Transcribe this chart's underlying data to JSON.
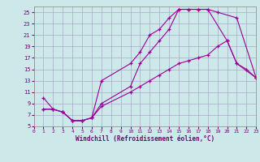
{
  "xlabel": "Windchill (Refroidissement éolien,°C)",
  "bg_color": "#cce8e8",
  "grid_color": "#aaaacc",
  "line_color": "#990099",
  "xlim": [
    0,
    23
  ],
  "ylim": [
    5,
    26
  ],
  "xticks": [
    0,
    1,
    2,
    3,
    4,
    5,
    6,
    7,
    8,
    9,
    10,
    11,
    12,
    13,
    14,
    15,
    16,
    17,
    18,
    19,
    20,
    21,
    22,
    23
  ],
  "yticks": [
    5,
    7,
    9,
    11,
    13,
    15,
    17,
    19,
    21,
    23,
    25
  ],
  "curve1_x": [
    1,
    2,
    3,
    4,
    5,
    6,
    7,
    10,
    11,
    12,
    13,
    14,
    15,
    16,
    17,
    18,
    19,
    21,
    23
  ],
  "curve1_y": [
    10,
    8,
    7.5,
    6,
    6,
    6.5,
    9,
    12,
    16,
    18,
    20,
    22,
    25.5,
    25.5,
    25.5,
    25.5,
    25,
    24,
    13.5
  ],
  "curve2_x": [
    1,
    2,
    3,
    4,
    5,
    6,
    7,
    10,
    11,
    12,
    13,
    14,
    15,
    16,
    17,
    18,
    20,
    21,
    23
  ],
  "curve2_y": [
    8,
    8,
    7.5,
    6,
    6,
    6.5,
    13,
    16,
    18,
    21,
    22,
    24,
    25.5,
    25.5,
    25.5,
    25.5,
    20,
    16,
    13.5
  ],
  "curve3_x": [
    1,
    2,
    3,
    4,
    5,
    6,
    7,
    10,
    11,
    12,
    13,
    14,
    15,
    16,
    17,
    18,
    19,
    20,
    21,
    22,
    23
  ],
  "curve3_y": [
    8,
    8,
    7.5,
    6,
    6,
    6.5,
    8.5,
    11,
    12,
    13,
    14,
    15,
    16,
    16.5,
    17,
    17.5,
    19,
    20,
    16,
    15,
    13.5
  ]
}
